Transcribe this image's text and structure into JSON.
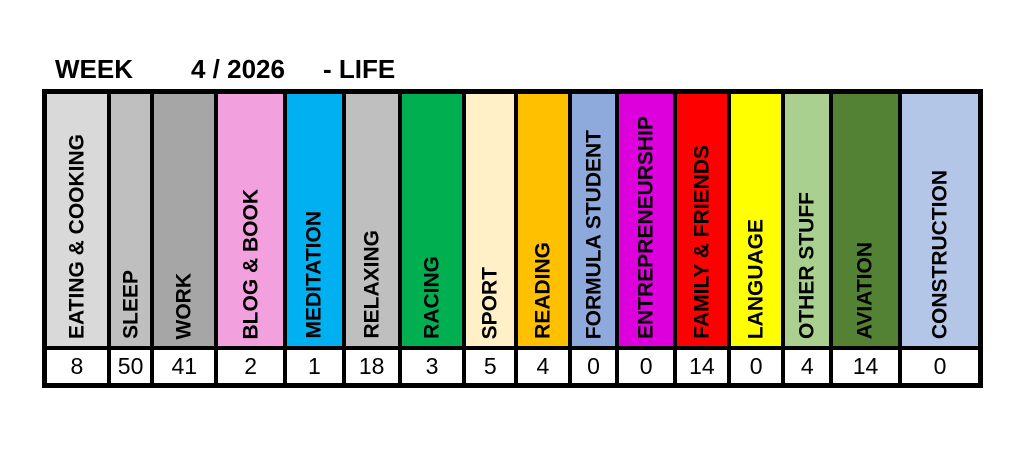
{
  "title": {
    "week_label": "WEEK",
    "week_value": "4 / 2026",
    "suffix": "- LIFE"
  },
  "chart_data": {
    "type": "table",
    "title": "WEEK 4 / 2026 - LIFE",
    "description_visible": "weekly category table with one colored label cell per category and an hours value row beneath",
    "categories": [
      "EATING & COOKING",
      "SLEEP",
      "WORK",
      "BLOG & BOOK",
      "MEDITATION",
      "RELAXING",
      "RACING",
      "SPORT",
      "READING",
      "FORMULA STUDENT",
      "ENTREPRENEURSHIP",
      "FAMILY & FRIENDS",
      "LANGUAGE",
      "OTHER STUFF",
      "AVIATION",
      "CONSTRUCTION"
    ],
    "values": [
      8,
      50,
      41,
      2,
      1,
      18,
      3,
      5,
      4,
      0,
      0,
      14,
      0,
      4,
      14,
      0
    ],
    "colors": [
      "#D9D9D9",
      "#BFBFBF",
      "#A6A6A6",
      "#F2A0DE",
      "#00B0F0",
      "#BFBFBF",
      "#00B050",
      "#FFF0C8",
      "#FFC000",
      "#8EA9DB",
      "#DD00DD",
      "#FF0000",
      "#FFFF00",
      "#A9D08E",
      "#548235",
      "#B4C6E7"
    ],
    "layout": {
      "label_orientation": "vertical-bottom-up",
      "grid_border_color": "#000000",
      "value_row_background": "#FFFFFF",
      "legend": "none",
      "axes": "none"
    }
  }
}
